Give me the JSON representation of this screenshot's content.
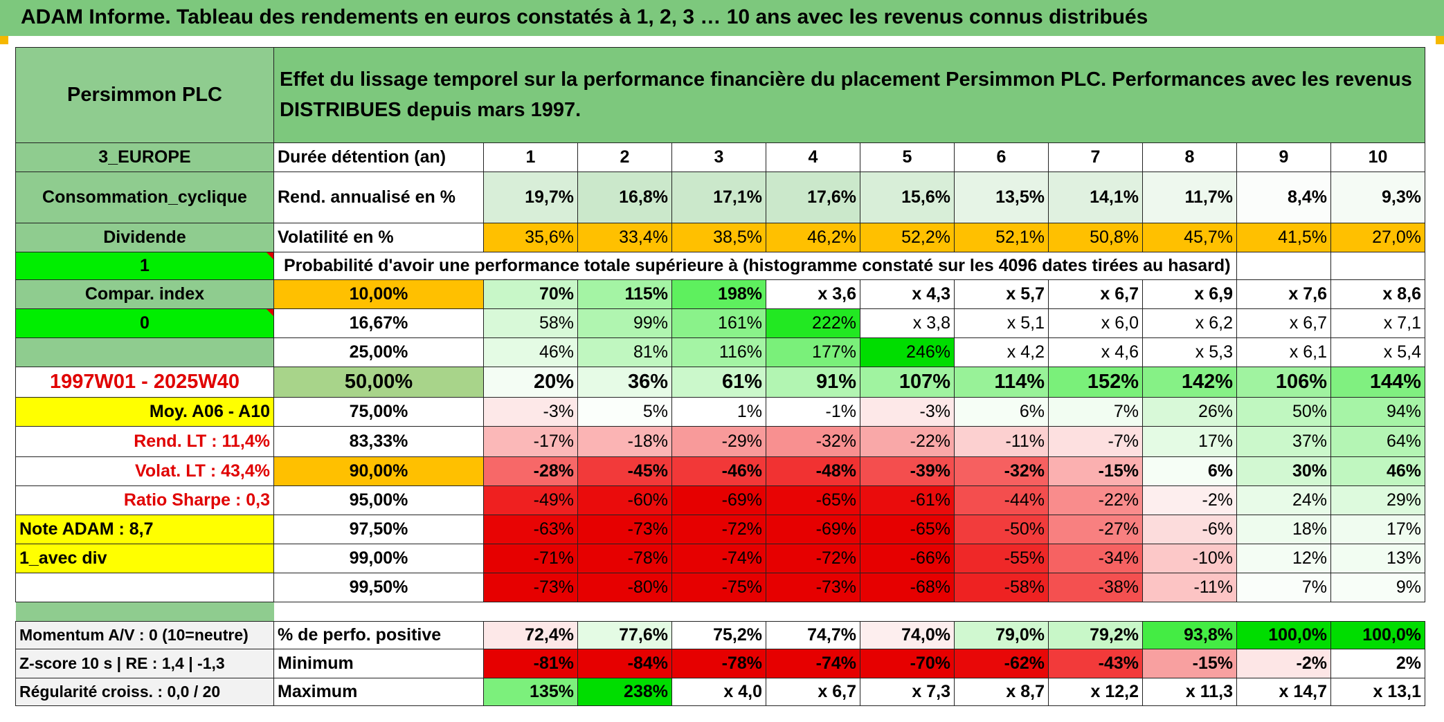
{
  "title": "ADAM Informe. Tableau des rendements en euros constatés à 1, 2, 3 … 10 ans avec les revenus connus distribués",
  "header": {
    "company": "Persimmon PLC",
    "description": "Effet du lissage temporel sur la performance financière du placement Persimmon PLC. Performances avec les revenus DISTRIBUES depuis mars 1997."
  },
  "left": {
    "region": "3_EUROPE",
    "sector": "Consommation_cyclique",
    "type": "Dividende",
    "flag1": "1",
    "compar_label": "Compar. index",
    "flag0": "0",
    "blank": "",
    "period": "1997W01 - 2025W40",
    "moy": "Moy. A06 - A10",
    "rend_lt": "Rend. LT :   11,4%",
    "volat_lt": "Volat. LT :   43,4%",
    "sharpe": "Ratio Sharpe :    0,3",
    "note": "Note ADAM : 8,7",
    "avec_div": "1_avec div",
    "last": ""
  },
  "labels": {
    "duration": "Durée détention (an)",
    "rend": "Rend. annualisé en %",
    "vol": "Volatilité en %",
    "prob": "Probabilité d'avoir une performance totale supérieure à (histogramme constaté sur les 4096 dates tirées au hasard)"
  },
  "years": [
    "1",
    "2",
    "3",
    "4",
    "5",
    "6",
    "7",
    "8",
    "9",
    "10"
  ],
  "rend": [
    "19,7%",
    "16,8%",
    "17,1%",
    "17,6%",
    "15,6%",
    "13,5%",
    "14,1%",
    "11,7%",
    "8,4%",
    "9,3%"
  ],
  "vol": [
    "35,6%",
    "33,4%",
    "38,5%",
    "46,2%",
    "52,2%",
    "52,1%",
    "50,8%",
    "45,7%",
    "41,5%",
    "27,0%"
  ],
  "quantiles": [
    {
      "p": "10,00%",
      "v": [
        "70%",
        "115%",
        "198%",
        "x 3,6",
        "x 4,3",
        "x 5,7",
        "x 6,7",
        "x 6,9",
        "x 7,6",
        "x 8,6"
      ]
    },
    {
      "p": "16,67%",
      "v": [
        "58%",
        "99%",
        "161%",
        "222%",
        "x 3,8",
        "x 5,1",
        "x 6,0",
        "x 6,2",
        "x 6,7",
        "x 7,1"
      ]
    },
    {
      "p": "25,00%",
      "v": [
        "46%",
        "81%",
        "116%",
        "177%",
        "246%",
        "x 4,2",
        "x 4,6",
        "x 5,3",
        "x 6,1",
        "x 5,4"
      ]
    },
    {
      "p": "50,00%",
      "v": [
        "20%",
        "36%",
        "61%",
        "91%",
        "107%",
        "114%",
        "152%",
        "142%",
        "106%",
        "144%"
      ]
    },
    {
      "p": "75,00%",
      "v": [
        "-3%",
        "5%",
        "1%",
        "-1%",
        "-3%",
        "6%",
        "7%",
        "26%",
        "50%",
        "94%"
      ]
    },
    {
      "p": "83,33%",
      "v": [
        "-17%",
        "-18%",
        "-29%",
        "-32%",
        "-22%",
        "-11%",
        "-7%",
        "17%",
        "37%",
        "64%"
      ]
    },
    {
      "p": "90,00%",
      "v": [
        "-28%",
        "-45%",
        "-46%",
        "-48%",
        "-39%",
        "-32%",
        "-15%",
        "6%",
        "30%",
        "46%"
      ]
    },
    {
      "p": "95,00%",
      "v": [
        "-49%",
        "-60%",
        "-69%",
        "-65%",
        "-61%",
        "-44%",
        "-22%",
        "-2%",
        "24%",
        "29%"
      ]
    },
    {
      "p": "97,50%",
      "v": [
        "-63%",
        "-73%",
        "-72%",
        "-69%",
        "-65%",
        "-50%",
        "-27%",
        "-6%",
        "18%",
        "17%"
      ]
    },
    {
      "p": "99,00%",
      "v": [
        "-71%",
        "-78%",
        "-74%",
        "-72%",
        "-66%",
        "-55%",
        "-34%",
        "-10%",
        "12%",
        "13%"
      ]
    },
    {
      "p": "99,50%",
      "v": [
        "-73%",
        "-80%",
        "-75%",
        "-73%",
        "-68%",
        "-58%",
        "-38%",
        "-11%",
        "7%",
        "9%"
      ]
    }
  ],
  "bottom": {
    "momentum": "Momentum A/V : 0 (10=neutre)",
    "zscore": "Z-score 10 s | RE : 1,4 | -1,3",
    "regularite": "Régularité croiss. : 0,0 / 20",
    "pos_label": "% de perfo. positive",
    "min_label": "Minimum",
    "max_label": "Maximum",
    "pos": [
      "72,4%",
      "77,6%",
      "75,2%",
      "74,7%",
      "74,0%",
      "79,0%",
      "79,2%",
      "93,8%",
      "100,0%",
      "100,0%"
    ],
    "min": [
      "-81%",
      "-84%",
      "-78%",
      "-74%",
      "-70%",
      "-62%",
      "-43%",
      "-15%",
      "-2%",
      "2%"
    ],
    "max": [
      "135%",
      "238%",
      "x 4,0",
      "x 6,7",
      "x 7,3",
      "x 8,7",
      "x 12,2",
      "x 11,3",
      "x 14,7",
      "x 13,1"
    ]
  },
  "colors": {
    "banner": "#7dc87d",
    "label_green": "#8fcc8f",
    "bright_green": "#00ee00",
    "orange": "#ffc000",
    "yellow": "#ffff00",
    "red_text": "#e00000"
  }
}
